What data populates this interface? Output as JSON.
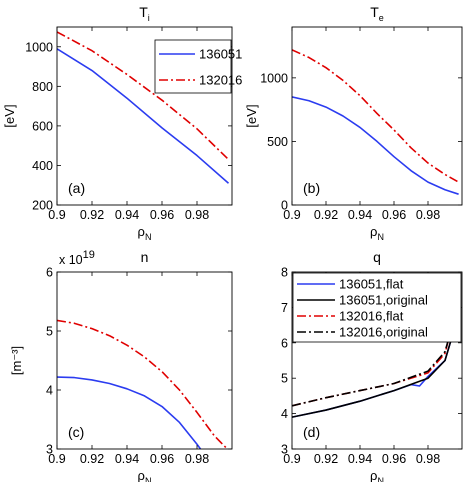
{
  "colors": {
    "blue": "#2b3cf0",
    "red": "#e00000",
    "black": "#000000"
  },
  "chart_data": [
    {
      "type": "line",
      "panel_label": "(a)",
      "title_main": "T",
      "title_sub": "i",
      "ylabel": "[eV]",
      "xlabel_main": "ρ",
      "xlabel_sub": "N",
      "xlim": [
        0.9,
        1.0
      ],
      "ylim": [
        200,
        1100
      ],
      "xticks": [
        0.9,
        0.92,
        0.94,
        0.96,
        0.98
      ],
      "xticklabels": [
        "0.9",
        "0.92",
        "0.94",
        "0.96",
        "0.98"
      ],
      "yticks": [
        200,
        400,
        600,
        800,
        1000
      ],
      "yticklabels": [
        "200",
        "400",
        "600",
        "800",
        "1000"
      ],
      "legend_position": "top-right",
      "series": [
        {
          "name": "136051",
          "color": "blue",
          "style": "solid",
          "x": [
            0.9,
            0.92,
            0.94,
            0.96,
            0.98,
            0.998
          ],
          "y": [
            990,
            880,
            740,
            590,
            450,
            310
          ]
        },
        {
          "name": "132016",
          "color": "red",
          "style": "dashdot",
          "x": [
            0.9,
            0.92,
            0.94,
            0.96,
            0.98,
            0.998
          ],
          "y": [
            1075,
            980,
            860,
            730,
            585,
            430
          ]
        }
      ]
    },
    {
      "type": "line",
      "panel_label": "(b)",
      "title_main": "T",
      "title_sub": "e",
      "ylabel": "[eV]",
      "xlabel_main": "ρ",
      "xlabel_sub": "N",
      "xlim": [
        0.9,
        1.0
      ],
      "ylim": [
        0,
        1400
      ],
      "xticks": [
        0.9,
        0.92,
        0.94,
        0.96,
        0.98
      ],
      "xticklabels": [
        "0.9",
        "0.92",
        "0.94",
        "0.96",
        "0.98"
      ],
      "yticks": [
        0,
        500,
        1000
      ],
      "yticklabels": [
        "0",
        "500",
        "1000"
      ],
      "series": [
        {
          "color": "blue",
          "style": "solid",
          "x": [
            0.9,
            0.91,
            0.92,
            0.93,
            0.94,
            0.95,
            0.96,
            0.97,
            0.98,
            0.99,
            0.998
          ],
          "y": [
            850,
            820,
            770,
            700,
            610,
            500,
            380,
            270,
            180,
            120,
            85
          ]
        },
        {
          "color": "red",
          "style": "dashdot",
          "x": [
            0.9,
            0.91,
            0.92,
            0.93,
            0.94,
            0.95,
            0.96,
            0.97,
            0.98,
            0.99,
            0.998
          ],
          "y": [
            1220,
            1160,
            1080,
            980,
            860,
            720,
            590,
            450,
            330,
            240,
            180
          ]
        }
      ]
    },
    {
      "type": "line",
      "panel_label": "(c)",
      "title_main": "n",
      "title_sub": "",
      "ylabel": "[m⁻³]",
      "yscale_note": "x 10",
      "yscale_exp": "19",
      "xlabel_main": "ρ",
      "xlabel_sub": "N",
      "xlim": [
        0.9,
        1.0
      ],
      "ylim": [
        3,
        6
      ],
      "xticks": [
        0.9,
        0.92,
        0.94,
        0.96,
        0.98
      ],
      "xticklabels": [
        "0.9",
        "0.92",
        "0.94",
        "0.96",
        "0.98"
      ],
      "yticks": [
        3,
        4,
        5,
        6
      ],
      "yticklabels": [
        "3",
        "4",
        "5",
        "6"
      ],
      "series": [
        {
          "color": "blue",
          "style": "solid",
          "x": [
            0.9,
            0.91,
            0.92,
            0.93,
            0.94,
            0.95,
            0.96,
            0.97,
            0.98,
            0.99,
            0.998
          ],
          "y": [
            4.22,
            4.21,
            4.17,
            4.11,
            4.02,
            3.9,
            3.72,
            3.45,
            3.08,
            2.68,
            2.5
          ]
        },
        {
          "color": "red",
          "style": "dashdot",
          "x": [
            0.9,
            0.91,
            0.92,
            0.93,
            0.94,
            0.95,
            0.96,
            0.97,
            0.98,
            0.99,
            0.998
          ],
          "y": [
            5.18,
            5.13,
            5.04,
            4.92,
            4.76,
            4.56,
            4.31,
            4.0,
            3.62,
            3.22,
            2.98
          ]
        }
      ]
    },
    {
      "type": "line",
      "panel_label": "(d)",
      "title_main": "q",
      "title_sub": "",
      "ylabel": "",
      "xlabel_main": "ρ",
      "xlabel_sub": "N",
      "xlim": [
        0.9,
        1.0
      ],
      "ylim": [
        3,
        8
      ],
      "xticks": [
        0.9,
        0.92,
        0.94,
        0.96,
        0.98
      ],
      "xticklabels": [
        "0.9",
        "0.92",
        "0.94",
        "0.96",
        "0.98"
      ],
      "yticks": [
        3,
        4,
        5,
        6,
        7,
        8
      ],
      "yticklabels": [
        "3",
        "4",
        "5",
        "6",
        "7",
        "8"
      ],
      "legend_position": "top-left",
      "series": [
        {
          "name": "136051,flat",
          "color": "blue",
          "style": "solid",
          "x": [
            0.9,
            0.92,
            0.94,
            0.96,
            0.97,
            0.975,
            0.98,
            0.99,
            0.998
          ],
          "y": [
            3.9,
            4.1,
            4.35,
            4.65,
            4.82,
            4.78,
            5.05,
            5.5,
            6.8
          ]
        },
        {
          "name": "136051,original",
          "color": "black",
          "style": "solid",
          "x": [
            0.9,
            0.92,
            0.94,
            0.96,
            0.98,
            0.99,
            0.998
          ],
          "y": [
            3.9,
            4.1,
            4.35,
            4.65,
            5.0,
            5.5,
            6.8
          ]
        },
        {
          "name": "132016,flat",
          "color": "red",
          "style": "dashdot",
          "x": [
            0.9,
            0.92,
            0.94,
            0.96,
            0.98,
            0.99,
            0.998
          ],
          "y": [
            4.22,
            4.45,
            4.65,
            4.85,
            5.15,
            5.7,
            7.2
          ]
        },
        {
          "name": "132016,original",
          "color": "black",
          "style": "dashdot",
          "x": [
            0.9,
            0.92,
            0.94,
            0.96,
            0.98,
            0.99,
            0.998
          ],
          "y": [
            4.22,
            4.45,
            4.65,
            4.85,
            5.2,
            5.75,
            7.1
          ]
        }
      ]
    }
  ]
}
